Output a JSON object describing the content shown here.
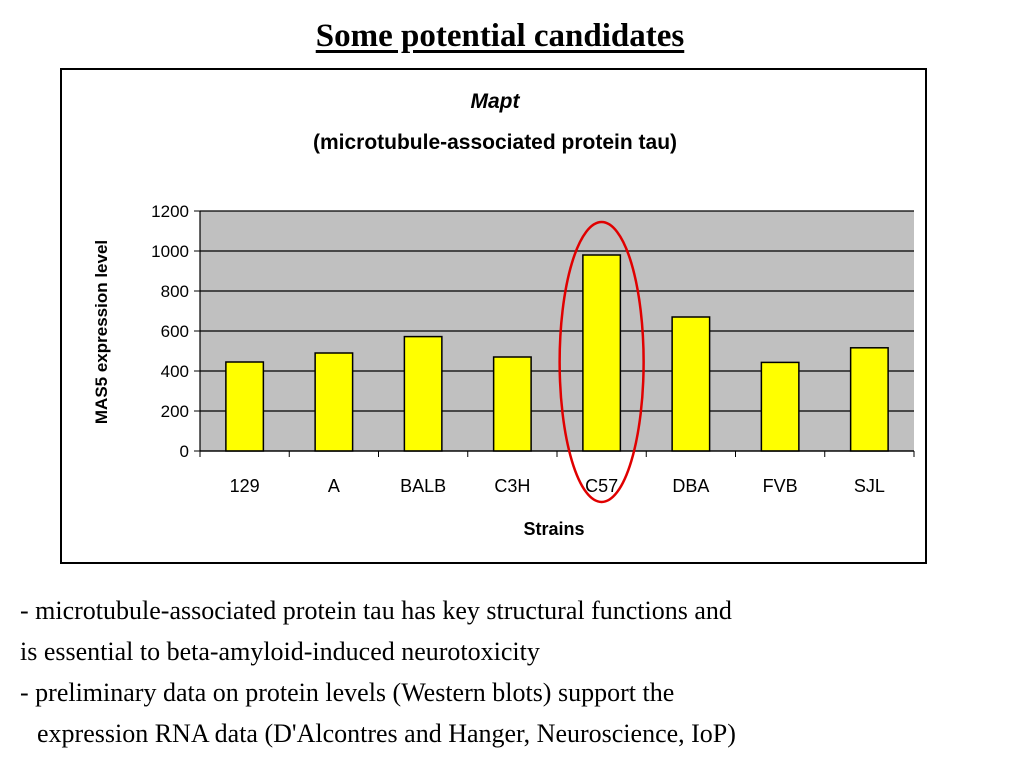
{
  "slide": {
    "title": "Some potential candidates",
    "bullets": [
      "- microtubule-associated protein tau has key structural functions and",
      "is essential to beta-amyloid-induced neurotoxicity",
      "- preliminary data on protein levels (Western blots) support the",
      "expression  RNA data (D'Alcontres and Hanger, Neuroscience, IoP)"
    ]
  },
  "chart_data": {
    "type": "bar",
    "title": "Mapt",
    "subtitle": "(microtubule-associated protein tau)",
    "xlabel": "Strains",
    "ylabel": "MAS5 expression level",
    "categories": [
      "129",
      "A",
      "BALB",
      "C3H",
      "C57",
      "DBA",
      "FVB",
      "SJL"
    ],
    "values": [
      445,
      490,
      572,
      470,
      980,
      670,
      443,
      516
    ],
    "ylim": [
      0,
      1200
    ],
    "yticks": [
      "0",
      "200",
      "400",
      "600",
      "800",
      "1000",
      "1200"
    ],
    "grid": true,
    "legend": "none",
    "highlighted_category": "C57",
    "colors": {
      "bar_fill": "#ffff00",
      "bar_stroke": "#000000",
      "plot_background": "#c0c0c0",
      "highlight_ellipse": "#e00000"
    }
  }
}
